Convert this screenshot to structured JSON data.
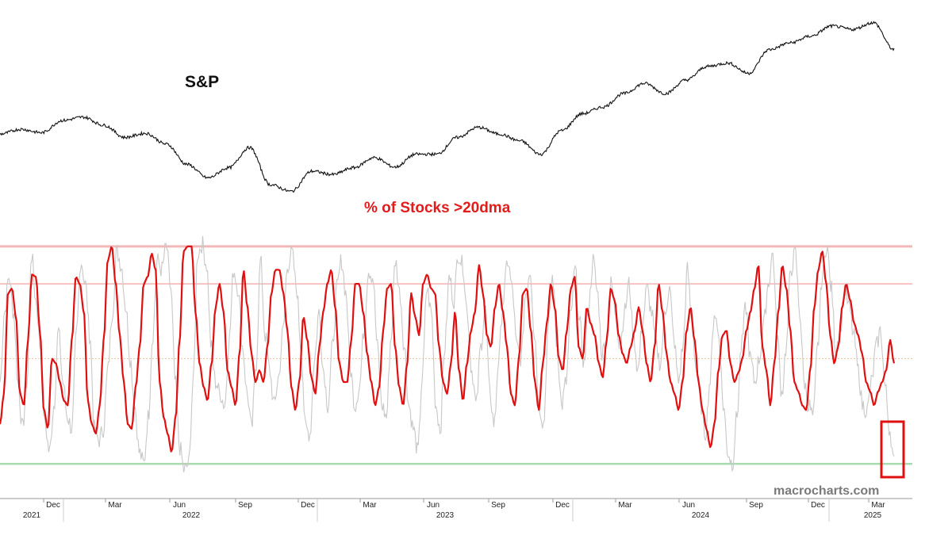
{
  "colors": {
    "sp_line": "#111111",
    "breadth_smoothed": "#e01010",
    "breadth_raw": "#c8c8c8",
    "upper_band_outer": "#f2b8b8",
    "upper_band_inner": "#f4b0b0",
    "mid_dotted": "#f0c8a0",
    "lower_band": "#a8dcb0",
    "highlight_box": "#e01010",
    "axis": "#999999"
  },
  "chart_data": [
    {
      "type": "line",
      "title": "S&P",
      "x_range": [
        "2021-08",
        "2025-04"
      ],
      "series": [
        {
          "name": "S&P",
          "x": [
            "2021-08",
            "2021-09",
            "2021-10",
            "2021-11",
            "2021-12",
            "2022-01",
            "2022-02",
            "2022-03",
            "2022-04",
            "2022-05",
            "2022-06",
            "2022-07",
            "2022-08",
            "2022-09",
            "2022-10",
            "2022-11",
            "2022-12",
            "2023-01",
            "2023-02",
            "2023-03",
            "2023-04",
            "2023-05",
            "2023-06",
            "2023-07",
            "2023-08",
            "2023-09",
            "2023-10",
            "2023-11",
            "2023-12",
            "2024-01",
            "2024-02",
            "2024-03",
            "2024-04",
            "2024-05",
            "2024-06",
            "2024-07",
            "2024-08",
            "2024-09",
            "2024-10",
            "2024-11",
            "2024-12",
            "2025-01",
            "2025-02",
            "2025-03"
          ],
          "values": [
            4450,
            4520,
            4470,
            4650,
            4700,
            4580,
            4400,
            4460,
            4300,
            4000,
            3800,
            3950,
            4250,
            3700,
            3600,
            3900,
            3850,
            3950,
            4100,
            3960,
            4150,
            4150,
            4400,
            4550,
            4450,
            4350,
            4150,
            4500,
            4750,
            4850,
            5050,
            5200,
            5050,
            5250,
            5450,
            5500,
            5350,
            5700,
            5800,
            5900,
            6050,
            6000,
            6100,
            5700
          ]
        }
      ]
    },
    {
      "type": "line",
      "title": "% of Stocks >20dma",
      "series": [
        {
          "values": [
            0.22,
            0.35,
            0.78,
            0.8,
            0.68,
            0.35,
            0.3,
            0.58,
            0.86,
            0.85,
            0.62,
            0.28,
            0.2,
            0.5,
            0.48,
            0.4,
            0.32,
            0.3,
            0.58,
            0.85,
            0.82,
            0.7,
            0.32,
            0.22,
            0.18,
            0.3,
            0.58,
            0.92,
            0.98,
            0.82,
            0.6,
            0.4,
            0.22,
            0.2,
            0.38,
            0.55,
            0.82,
            0.85,
            0.95,
            0.88,
            0.4,
            0.25,
            0.18,
            0.1,
            0.25,
            0.58,
            0.96,
            0.98,
            0.98,
            0.7,
            0.48,
            0.38,
            0.32,
            0.48,
            0.72,
            0.82,
            0.7,
            0.45,
            0.38,
            0.3,
            0.52,
            0.88,
            0.72,
            0.52,
            0.4,
            0.45,
            0.4,
            0.55,
            0.78,
            0.88,
            0.88,
            0.78,
            0.62,
            0.38,
            0.28,
            0.4,
            0.68,
            0.58,
            0.42,
            0.35,
            0.55,
            0.7,
            0.82,
            0.88,
            0.72,
            0.48,
            0.4,
            0.4,
            0.58,
            0.82,
            0.82,
            0.7,
            0.52,
            0.4,
            0.3,
            0.38,
            0.62,
            0.8,
            0.82,
            0.55,
            0.38,
            0.3,
            0.48,
            0.78,
            0.68,
            0.6,
            0.82,
            0.86,
            0.8,
            0.78,
            0.55,
            0.4,
            0.35,
            0.48,
            0.7,
            0.45,
            0.32,
            0.48,
            0.62,
            0.7,
            0.9,
            0.78,
            0.6,
            0.55,
            0.72,
            0.82,
            0.7,
            0.55,
            0.35,
            0.3,
            0.5,
            0.78,
            0.8,
            0.62,
            0.4,
            0.28,
            0.48,
            0.65,
            0.82,
            0.72,
            0.5,
            0.45,
            0.62,
            0.8,
            0.85,
            0.55,
            0.5,
            0.72,
            0.65,
            0.6,
            0.48,
            0.42,
            0.58,
            0.8,
            0.75,
            0.6,
            0.52,
            0.48,
            0.55,
            0.62,
            0.72,
            0.62,
            0.48,
            0.4,
            0.55,
            0.82,
            0.7,
            0.52,
            0.4,
            0.35,
            0.28,
            0.4,
            0.62,
            0.72,
            0.58,
            0.4,
            0.28,
            0.2,
            0.12,
            0.22,
            0.45,
            0.6,
            0.62,
            0.48,
            0.4,
            0.44,
            0.5,
            0.62,
            0.7,
            0.8,
            0.9,
            0.55,
            0.45,
            0.3,
            0.48,
            0.7,
            0.9,
            0.8,
            0.62,
            0.4,
            0.36,
            0.3,
            0.28,
            0.45,
            0.72,
            0.88,
            0.96,
            0.82,
            0.6,
            0.48,
            0.55,
            0.72,
            0.82,
            0.75,
            0.65,
            0.6,
            0.52,
            0.4,
            0.36,
            0.3,
            0.36,
            0.4,
            0.45,
            0.58,
            0.48
          ],
          "color": "#e01010"
        },
        {
          "values": [
            0.4,
            0.7,
            0.85,
            0.7,
            0.4,
            0.2,
            0.4,
            0.95,
            0.75,
            0.55,
            0.22,
            0.1,
            0.3,
            0.62,
            0.4,
            0.25,
            0.2,
            0.6,
            0.92,
            0.82,
            0.6,
            0.2,
            0.15,
            0.2,
            0.45,
            0.7,
            0.96,
            0.9,
            0.72,
            0.5,
            0.3,
            0.1,
            0.05,
            0.25,
            0.6,
            0.92,
            0.88,
            0.98,
            0.8,
            0.4,
            0.12,
            0.02,
            0.05,
            0.4,
            0.95,
            0.99,
            0.9,
            0.55,
            0.4,
            0.35,
            0.3,
            0.58,
            0.88,
            0.8,
            0.55,
            0.35,
            0.2,
            0.48,
            0.92,
            0.6,
            0.45,
            0.3,
            0.42,
            0.62,
            0.9,
            0.95,
            0.8,
            0.55,
            0.2,
            0.18,
            0.5,
            0.7,
            0.45,
            0.3,
            0.55,
            0.8,
            0.92,
            0.78,
            0.45,
            0.3,
            0.38,
            0.62,
            0.88,
            0.85,
            0.55,
            0.3,
            0.25,
            0.58,
            0.92,
            0.78,
            0.55,
            0.3,
            0.2,
            0.1,
            0.42,
            0.8,
            0.7,
            0.3,
            0.2,
            0.55,
            0.85,
            0.75,
            0.95,
            0.9,
            0.7,
            0.45,
            0.3,
            0.55,
            0.72,
            0.35,
            0.22,
            0.5,
            0.75,
            0.92,
            0.8,
            0.55,
            0.5,
            0.78,
            0.88,
            0.6,
            0.3,
            0.22,
            0.62,
            0.85,
            0.55,
            0.3,
            0.4,
            0.68,
            0.88,
            0.65,
            0.48,
            0.72,
            0.92,
            0.78,
            0.52,
            0.6,
            0.82,
            0.7,
            0.55,
            0.7,
            0.82,
            0.6,
            0.45,
            0.65,
            0.8,
            0.7,
            0.55,
            0.48,
            0.7,
            0.8,
            0.58,
            0.4,
            0.55,
            0.88,
            0.65,
            0.45,
            0.3,
            0.18,
            0.4,
            0.7,
            0.6,
            0.3,
            0.1,
            0.05,
            0.25,
            0.55,
            0.72,
            0.5,
            0.4,
            0.5,
            0.65,
            0.82,
            0.95,
            0.6,
            0.35,
            0.55,
            0.88,
            0.95,
            0.7,
            0.4,
            0.3,
            0.25,
            0.55,
            0.85,
            0.99,
            0.8,
            0.55,
            0.62,
            0.8,
            0.72,
            0.6,
            0.45,
            0.3,
            0.28,
            0.4,
            0.55,
            0.62,
            0.38,
            0.2,
            0.05
          ],
          "color": "#c8c8c8"
        }
      ],
      "reference_lines": [
        0.98,
        0.82,
        0.5,
        0.05
      ]
    }
  ],
  "x_axis": {
    "months": [
      "Dec",
      "Mar",
      "Jun",
      "Sep",
      "Dec",
      "Mar",
      "Jun",
      "Sep",
      "Dec",
      "Mar",
      "Jun",
      "Sep",
      "Dec",
      "Mar"
    ],
    "years": [
      "2021",
      "2022",
      "2023",
      "2024",
      "2025"
    ]
  },
  "labels": {
    "sp": "S&P",
    "breadth": "% of Stocks >20dma",
    "watermark": "macrocharts.com"
  }
}
